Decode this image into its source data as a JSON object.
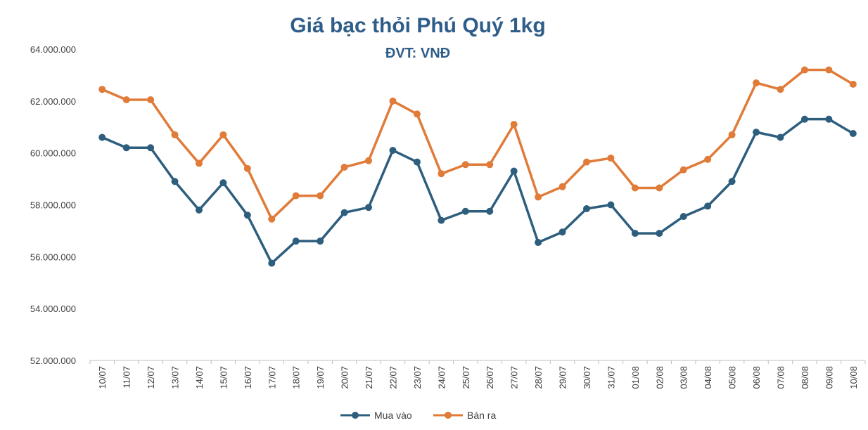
{
  "colors": {
    "buy": "#2E5E7E",
    "sell": "#E07B39",
    "title": "#2F5D8A",
    "axis": "#BFBFBF"
  },
  "chart_data": {
    "type": "line",
    "title": "Giá bạc thỏi Phú Quý 1kg",
    "subtitle": "ĐVT: VNĐ",
    "xlabel": "",
    "ylabel": "",
    "ylim": [
      52000000,
      64000000
    ],
    "yticks": [
      52000000,
      54000000,
      56000000,
      58000000,
      60000000,
      62000000,
      64000000
    ],
    "ytick_labels": [
      "52.000.000",
      "54.000.000",
      "56.000.000",
      "58.000.000",
      "60.000.000",
      "62.000.000",
      "64.000.000"
    ],
    "grid": false,
    "legend_position": "bottom",
    "categories": [
      "10/07",
      "11/07",
      "12/07",
      "13/07",
      "14/07",
      "15/07",
      "16/07",
      "17/07",
      "18/07",
      "19/07",
      "20/07",
      "21/07",
      "22/07",
      "23/07",
      "24/07",
      "25/07",
      "26/07",
      "27/07",
      "28/07",
      "29/07",
      "30/07",
      "31/07",
      "01/08",
      "02/08",
      "03/08",
      "04/08",
      "05/08",
      "06/08",
      "07/08",
      "08/08",
      "09/08",
      "10/08"
    ],
    "series": [
      {
        "name": "Mua vào",
        "color": "#2E5E7E",
        "values": [
          60600000,
          60200000,
          60200000,
          58900000,
          57800000,
          58850000,
          57600000,
          55750000,
          56600000,
          56600000,
          57700000,
          57900000,
          60100000,
          59650000,
          57400000,
          57750000,
          57750000,
          59300000,
          56550000,
          56950000,
          57850000,
          58000000,
          56900000,
          56900000,
          57550000,
          57950000,
          58900000,
          60800000,
          60600000,
          61300000,
          61300000,
          60750000
        ]
      },
      {
        "name": "Bán ra",
        "color": "#E07B39",
        "values": [
          62450000,
          62050000,
          62050000,
          60700000,
          59600000,
          60700000,
          59400000,
          57450000,
          58350000,
          58350000,
          59450000,
          59700000,
          62000000,
          61500000,
          59200000,
          59550000,
          59550000,
          61100000,
          58300000,
          58700000,
          59650000,
          59800000,
          58650000,
          58650000,
          59350000,
          59750000,
          60700000,
          62700000,
          62450000,
          63200000,
          63200000,
          62650000
        ]
      }
    ]
  }
}
